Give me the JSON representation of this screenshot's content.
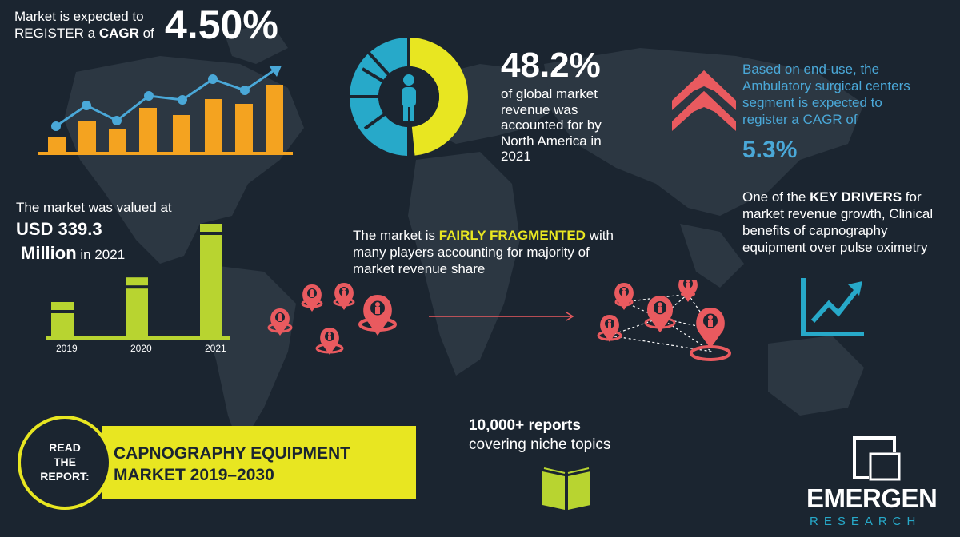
{
  "cagr_block": {
    "line1": "Market is expected to",
    "line2_prefix": "REGISTER a ",
    "line2_bold": "CAGR",
    "line2_suffix": " of",
    "value": "4.50%"
  },
  "share_block": {
    "value": "48.2%",
    "line1": "of global market",
    "line2": "revenue was",
    "line3": "accounted for by",
    "line4": "North America in",
    "line5": "2021"
  },
  "enduse_block": {
    "line1": "Based on end-use,  the",
    "line2": "Ambulatory surgical centers",
    "line3": "segment is expected to",
    "line4": "register a CAGR of",
    "value": "5.3%"
  },
  "valued_block": {
    "line1": "The market was valued at",
    "line2": "USD 339.3",
    "line3_bold": "Million",
    "line3_rest": " in 2021"
  },
  "value_chart": {
    "categories": [
      "2019",
      "2020",
      "2021"
    ],
    "values": [
      0.3,
      0.52,
      1.0
    ]
  },
  "fragment_block": {
    "prefix": "The market is ",
    "highlight": "FAIRLY FRAGMENTED",
    "suffix": " with",
    "line2": "many players accounting for majority of",
    "line3": "market revenue share"
  },
  "drivers_block": {
    "prefix": "One of the ",
    "bold": "KEY DRIVERS",
    "suffix": " for",
    "line2": "market revenue growth, Clinical",
    "line3": "benefits of capnography",
    "line4": "equipment over pulse oximetry"
  },
  "reports_block": {
    "line1": "10,000+ reports",
    "line2": "covering niche topics"
  },
  "report_banner": {
    "read1": "READ",
    "read2": "THE",
    "read3": "REPORT:",
    "title1": "CAPNOGRAPHY EQUIPMENT",
    "title2": "MARKET 2019–2030"
  },
  "logo": {
    "name": "EMERGEN",
    "sub": "RESEARCH"
  },
  "colors": {
    "background": "#1b2530",
    "accent_yellow": "#e8e621",
    "accent_teal": "#27a9c9",
    "accent_red": "#e95a5f",
    "accent_orange": "#f4a320",
    "accent_green": "#b8d430",
    "accent_blue": "#4aa8d8"
  },
  "icons": [
    "growth-chart-icon",
    "donut-person-icon",
    "double-chevron-up-icon",
    "bar-chart-icon",
    "map-pin-icon",
    "network-pins-icon",
    "trend-up-icon",
    "open-book-icon",
    "emergen-logo-icon"
  ]
}
